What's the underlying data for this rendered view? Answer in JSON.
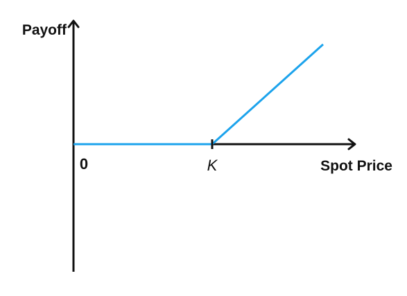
{
  "chart_data": {
    "type": "line",
    "title": "",
    "xlabel": "Spot Price",
    "ylabel": "Payoff",
    "origin_label": "0",
    "strike_label": "K",
    "strike": 1,
    "xlim": [
      0,
      2
    ],
    "ylim": [
      -1,
      1
    ],
    "grid": false,
    "legend": "none",
    "series": [
      {
        "x": [
          0,
          1,
          1.8
        ],
        "y": [
          0,
          0,
          0.8
        ],
        "color": "#1ca3ec"
      }
    ],
    "colors": {
      "axis": "#111111",
      "payoff_line": "#1ca3ec"
    }
  }
}
